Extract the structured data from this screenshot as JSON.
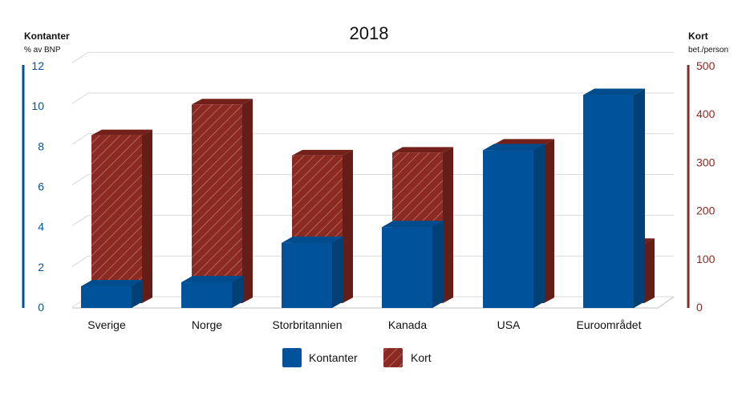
{
  "chart_data": {
    "type": "bar",
    "title": "2018",
    "categories": [
      "Sverige",
      "Norge",
      "Storbritannien",
      "Kanada",
      "USA",
      "Euroområdet"
    ],
    "series": [
      {
        "name": "Kontanter",
        "axis": "left",
        "values": [
          1.1,
          1.3,
          3.3,
          4.1,
          8.0,
          10.8
        ],
        "color": "#00539B"
      },
      {
        "name": "Kort",
        "axis": "right",
        "values": [
          355,
          420,
          312,
          318,
          335,
          125
        ],
        "color": "#8B2A22"
      }
    ],
    "left_axis": {
      "title": "Kontanter",
      "subtitle": "% av BNP",
      "ylim": [
        0,
        12
      ],
      "ticks": [
        "0",
        "2",
        "4",
        "6",
        "8",
        "10",
        "12"
      ],
      "color": "#00539B"
    },
    "right_axis": {
      "title": "Kort",
      "subtitle": "bet./person",
      "ylim": [
        0,
        500
      ],
      "ticks": [
        "0",
        "100",
        "200",
        "300",
        "400",
        "500"
      ],
      "color": "#8B2A22"
    },
    "grid": true,
    "legend": "bottom"
  }
}
